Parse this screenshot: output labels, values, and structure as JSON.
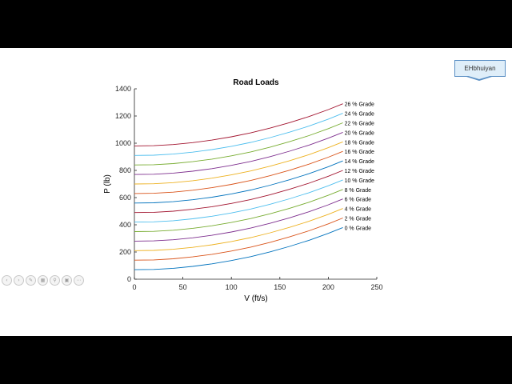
{
  "badge": {
    "text": "EHbhuiyan"
  },
  "colors": {
    "series": [
      "#0072bd",
      "#d95319",
      "#edb120",
      "#7e2f8e",
      "#77ac30",
      "#4dbeee",
      "#a2142f"
    ]
  },
  "toolbar": {
    "icons": [
      "prev-icon",
      "next-icon",
      "pen-icon",
      "slides-icon",
      "zoom-icon",
      "subtitle-icon",
      "more-icon"
    ]
  },
  "chart_data": {
    "type": "line",
    "title": "Road Loads",
    "xlabel": "V (ft/s)",
    "ylabel": "P (lb)",
    "xlim": [
      0,
      250
    ],
    "ylim": [
      0,
      1400
    ],
    "xticks": [
      0,
      50,
      100,
      150,
      200,
      250
    ],
    "yticks": [
      0,
      200,
      400,
      600,
      800,
      1000,
      1200,
      1400
    ],
    "grid": false,
    "legend": "inline labels at line ends (right)",
    "x": [
      0,
      20,
      40,
      60,
      80,
      100,
      120,
      140,
      160,
      180,
      200,
      215
    ],
    "series": [
      {
        "name": "0 % Grade",
        "values": [
          70,
          72,
          80,
          94,
          113,
          137,
          166,
          201,
          241,
          286,
          337,
          380
        ]
      },
      {
        "name": "2 % Grade",
        "values": [
          140,
          142,
          150,
          164,
          183,
          207,
          236,
          271,
          311,
          356,
          407,
          450
        ]
      },
      {
        "name": "4 % Grade",
        "values": [
          210,
          212,
          220,
          234,
          253,
          277,
          306,
          341,
          381,
          426,
          477,
          520
        ]
      },
      {
        "name": "6 % Grade",
        "values": [
          280,
          282,
          290,
          304,
          323,
          347,
          376,
          411,
          451,
          496,
          547,
          590
        ]
      },
      {
        "name": "8 % Grade",
        "values": [
          350,
          352,
          360,
          374,
          393,
          417,
          446,
          481,
          521,
          566,
          617,
          660
        ]
      },
      {
        "name": "10 % Grade",
        "values": [
          420,
          422,
          430,
          444,
          463,
          487,
          516,
          551,
          591,
          636,
          687,
          730
        ]
      },
      {
        "name": "12 % Grade",
        "values": [
          490,
          492,
          500,
          514,
          533,
          557,
          586,
          621,
          661,
          706,
          757,
          800
        ]
      },
      {
        "name": "14 % Grade",
        "values": [
          560,
          562,
          570,
          584,
          603,
          627,
          656,
          691,
          731,
          776,
          827,
          870
        ]
      },
      {
        "name": "16 % Grade",
        "values": [
          630,
          632,
          640,
          654,
          673,
          697,
          726,
          761,
          801,
          846,
          897,
          940
        ]
      },
      {
        "name": "18 % Grade",
        "values": [
          700,
          702,
          710,
          724,
          743,
          767,
          796,
          831,
          871,
          916,
          967,
          1010
        ]
      },
      {
        "name": "20 % Grade",
        "values": [
          770,
          772,
          780,
          794,
          813,
          837,
          866,
          901,
          941,
          986,
          1037,
          1080
        ]
      },
      {
        "name": "22 % Grade",
        "values": [
          840,
          842,
          850,
          864,
          883,
          907,
          936,
          971,
          1011,
          1056,
          1107,
          1150
        ]
      },
      {
        "name": "24 % Grade",
        "values": [
          910,
          912,
          920,
          934,
          953,
          977,
          1006,
          1041,
          1081,
          1126,
          1177,
          1220
        ]
      },
      {
        "name": "26 % Grade",
        "values": [
          980,
          982,
          990,
          1004,
          1023,
          1047,
          1076,
          1111,
          1151,
          1196,
          1247,
          1290
        ]
      }
    ]
  }
}
